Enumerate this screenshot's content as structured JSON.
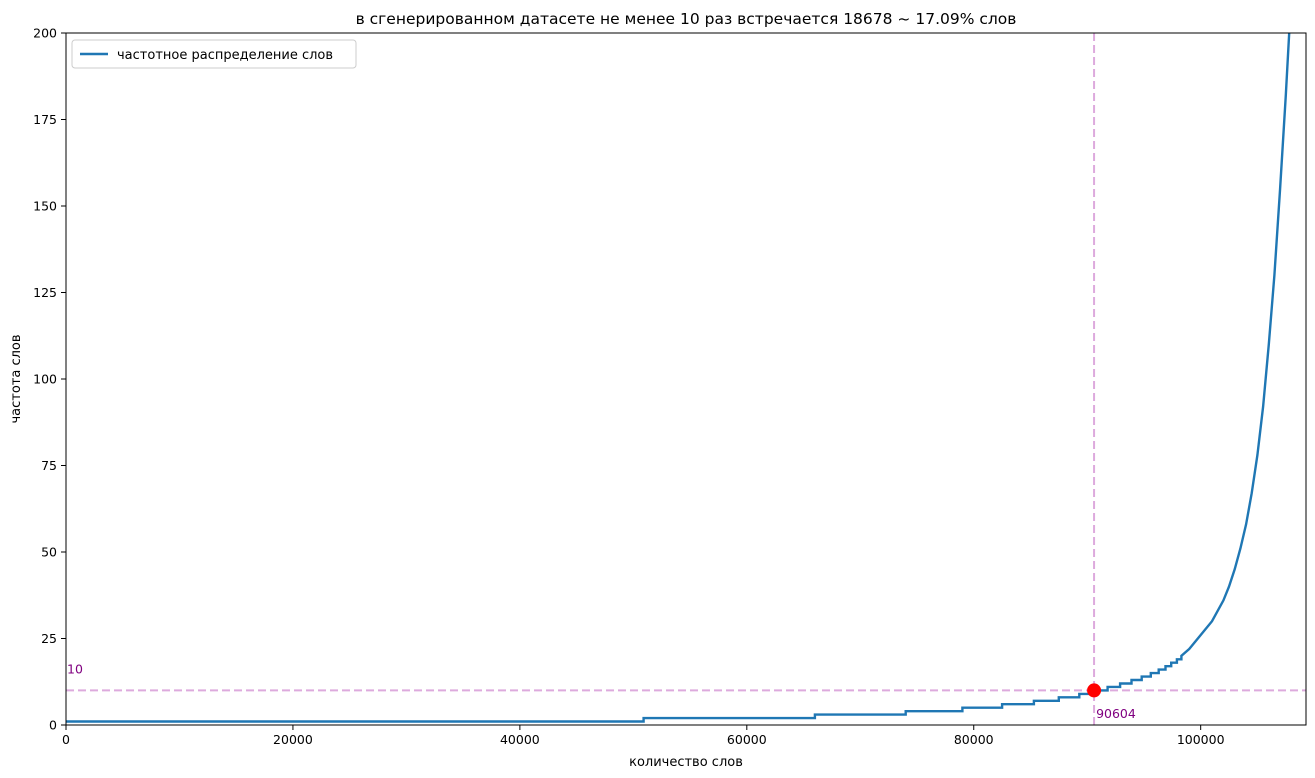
{
  "chart_data": {
    "type": "line",
    "title": "в сгенерированном датасете не менее 10 раз встречается 18678 ~ 17.09% слов",
    "xlabel": "количество слов",
    "ylabel": "частота слов",
    "xlim": [
      0,
      109282
    ],
    "ylim": [
      0,
      200
    ],
    "xticks": [
      0,
      20000,
      40000,
      60000,
      80000,
      100000
    ],
    "yticks": [
      0,
      25,
      50,
      75,
      100,
      125,
      150,
      175,
      200
    ],
    "grid": false,
    "legend_position": "top-left",
    "series": [
      {
        "name": "частотное распределение слов",
        "color": "#1f77b4",
        "steps": [
          [
            0,
            1
          ],
          [
            50900,
            1
          ],
          [
            50900,
            2
          ],
          [
            66000,
            2
          ],
          [
            66000,
            3
          ],
          [
            74000,
            3
          ],
          [
            74000,
            4
          ],
          [
            79000,
            4
          ],
          [
            79000,
            5
          ],
          [
            82500,
            5
          ],
          [
            82500,
            6
          ],
          [
            85300,
            6
          ],
          [
            85300,
            7
          ],
          [
            87500,
            7
          ],
          [
            87500,
            8
          ],
          [
            89300,
            8
          ],
          [
            89300,
            9
          ],
          [
            90604,
            9
          ],
          [
            90604,
            10
          ],
          [
            91800,
            10
          ],
          [
            91800,
            11
          ],
          [
            92900,
            11
          ],
          [
            92900,
            12
          ],
          [
            93900,
            12
          ],
          [
            93900,
            13
          ],
          [
            94800,
            13
          ],
          [
            94800,
            14
          ],
          [
            95600,
            14
          ],
          [
            95600,
            15
          ],
          [
            96300,
            15
          ],
          [
            96300,
            16
          ],
          [
            96900,
            16
          ],
          [
            96900,
            17
          ],
          [
            97400,
            17
          ],
          [
            97400,
            18
          ],
          [
            97900,
            18
          ],
          [
            97900,
            19
          ],
          [
            98300,
            19
          ],
          [
            98300,
            20
          ]
        ],
        "curve": [
          [
            98300,
            20
          ],
          [
            99000,
            22
          ],
          [
            100000,
            26
          ],
          [
            101000,
            30
          ],
          [
            102000,
            36
          ],
          [
            102500,
            40
          ],
          [
            103000,
            45
          ],
          [
            103500,
            51
          ],
          [
            104000,
            58
          ],
          [
            104500,
            67
          ],
          [
            105000,
            78
          ],
          [
            105500,
            92
          ],
          [
            106000,
            110
          ],
          [
            106500,
            130
          ],
          [
            107000,
            155
          ],
          [
            107500,
            182
          ],
          [
            107800,
            200
          ],
          [
            108000,
            215
          ]
        ]
      }
    ],
    "threshold": {
      "y": 10,
      "x": 90604,
      "y_label": "10",
      "x_label": "90604",
      "line_color": "#ddaadd",
      "label_color": "#800080",
      "marker_color": "#ff0000"
    }
  }
}
